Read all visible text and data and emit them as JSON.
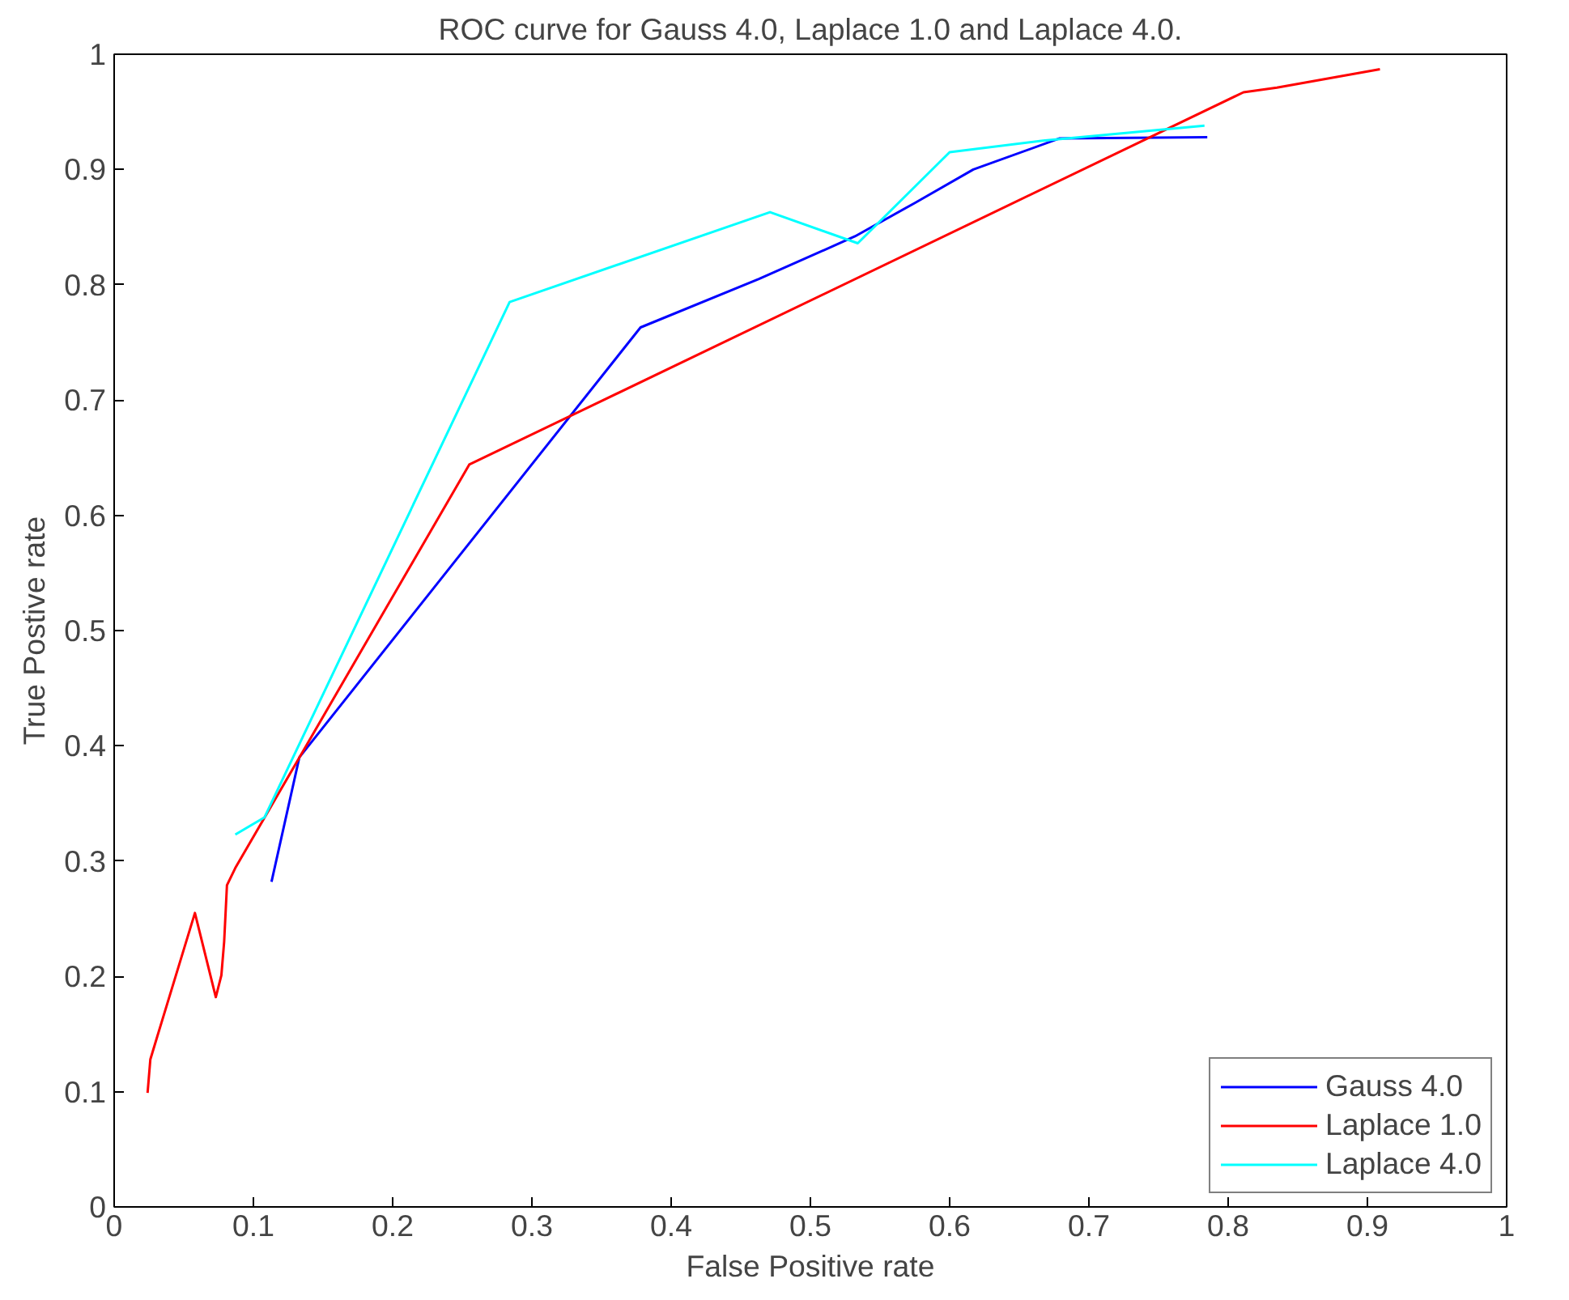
{
  "chart_data": {
    "type": "line",
    "title": "ROC curve for Gauss 4.0, Laplace 1.0 and Laplace 4.0.",
    "xlabel": "False Positive rate",
    "ylabel": "True Postive rate",
    "xlim": [
      0,
      1
    ],
    "ylim": [
      0,
      1
    ],
    "xticks": [
      0,
      0.1,
      0.2,
      0.3,
      0.4,
      0.5,
      0.6,
      0.7,
      0.8,
      0.9,
      1
    ],
    "yticks": [
      0,
      0.1,
      0.2,
      0.3,
      0.4,
      0.5,
      0.6,
      0.7,
      0.8,
      0.9,
      1
    ],
    "grid": false,
    "legend": "bottom right",
    "marker": "none",
    "line_style": "solid",
    "series": [
      {
        "name": "Gauss 4.0",
        "color": "#0000ff",
        "x": [
          0.113,
          0.133,
          0.378,
          0.463,
          0.532,
          0.575,
          0.617,
          0.679,
          0.785
        ],
        "values": [
          0.282,
          0.39,
          0.763,
          0.805,
          0.842,
          0.871,
          0.9,
          0.927,
          0.928
        ]
      },
      {
        "name": "Laplace 1.0",
        "color": "#ff0000",
        "x": [
          0.024,
          0.026,
          0.031,
          0.058,
          0.073,
          0.077,
          0.079,
          0.081,
          0.087,
          0.255,
          0.811,
          0.835,
          0.909
        ],
        "values": [
          0.099,
          0.128,
          0.148,
          0.255,
          0.182,
          0.201,
          0.23,
          0.279,
          0.294,
          0.644,
          0.967,
          0.971,
          0.987
        ]
      },
      {
        "name": "Laplace 4.0",
        "color": "#00ffff",
        "x": [
          0.087,
          0.108,
          0.284,
          0.471,
          0.534,
          0.6,
          0.667,
          0.783
        ],
        "values": [
          0.323,
          0.338,
          0.785,
          0.863,
          0.836,
          0.915,
          0.925,
          0.938
        ]
      }
    ]
  }
}
